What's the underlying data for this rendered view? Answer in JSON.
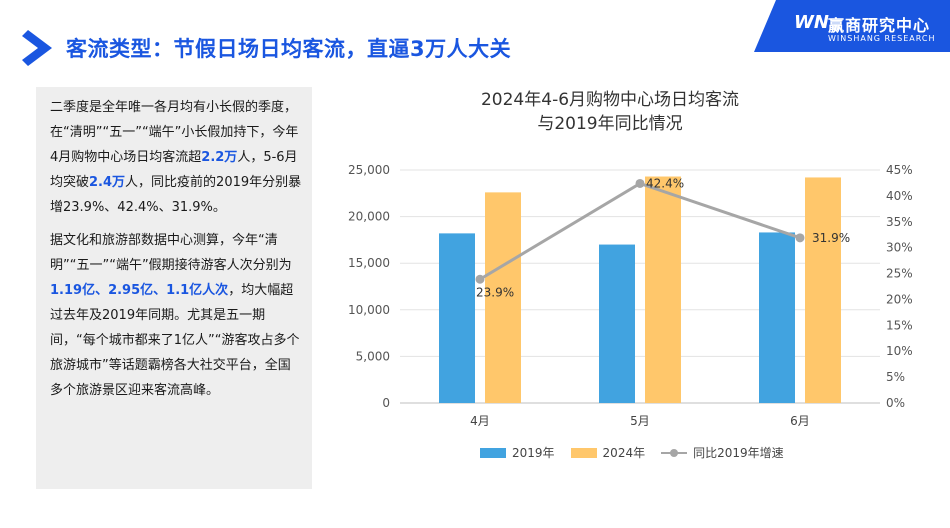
{
  "header": {
    "title": "客流类型：节假日场日均客流，直逼3万人大关"
  },
  "brand": {
    "logo": "WN",
    "name": "赢商研究中心",
    "subtitle": "WINSHANG RESEARCH"
  },
  "textbox": {
    "p1_a": "二季度是全年唯一各月均有小长假的季度，在“清明”“五一”“端午”小长假加持下，今年4月购物中心场日均客流超",
    "p1_h1": "2.2万",
    "p1_b": "人，5-6月均突破",
    "p1_h2": "2.4万",
    "p1_c": "人，同比疫前的2019年分别暴增23.9%、42.4%、31.9%。",
    "p2_a": "据文化和旅游部数据中心测算，今年“清明”“五一”“端午”假期接待游客人次分别为",
    "p2_h": "1.19亿、2.95亿、1.1亿人次",
    "p2_b": "，均大幅超过去年及2019年同期。尤其是五一期间，“每个城市都来了1亿人”“游客攻占多个旅游城市”等话题霸榜各大社交平台，全国多个旅游景区迎来客流高峰。"
  },
  "colors": {
    "accent": "#1a56e0",
    "bar2019": "#41a3e0",
    "bar2024": "#ffc76b",
    "line": "#a6a6a6"
  },
  "chart_data": {
    "type": "bar",
    "title_line1": "2024年4-6月购物中心场日均客流",
    "title_line2": "与2019年同比情况",
    "categories": [
      "4月",
      "5月",
      "6月"
    ],
    "series": [
      {
        "name": "2019年",
        "values": [
          18200,
          17000,
          18300
        ]
      },
      {
        "name": "2024年",
        "values": [
          22600,
          24300,
          24200
        ]
      }
    ],
    "line_series": {
      "name": "同比2019年增速",
      "values": [
        23.9,
        42.4,
        31.9
      ],
      "labels": [
        "23.9%",
        "42.4%",
        "31.9%"
      ]
    },
    "y_left": {
      "min": 0,
      "max": 25000,
      "ticks": [
        "0",
        "5,000",
        "10,000",
        "15,000",
        "20,000",
        "25,000"
      ]
    },
    "y_right": {
      "min": 0,
      "max": 45,
      "ticks": [
        "0%",
        "5%",
        "10%",
        "15%",
        "20%",
        "25%",
        "30%",
        "35%",
        "40%",
        "45%"
      ]
    },
    "grid": true,
    "legend": "bottom"
  }
}
